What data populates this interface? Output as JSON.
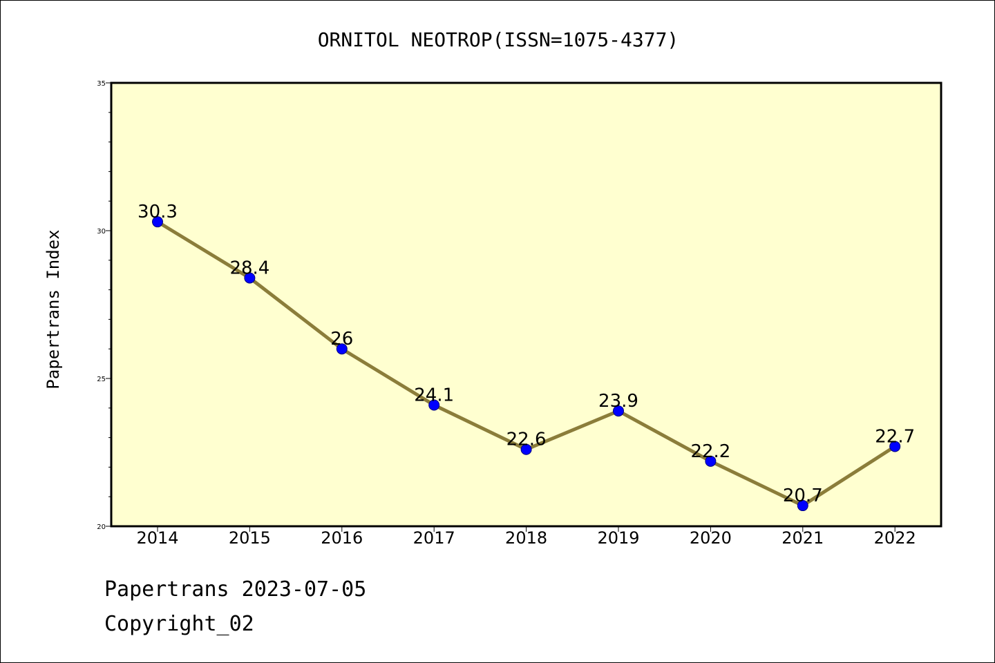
{
  "colors": {
    "plot_background": "#ffffd0",
    "line": "#8b7d3a",
    "marker": "#0000ff",
    "marker_edge": "#000080",
    "axis": "#000000"
  },
  "chart_data": {
    "type": "line",
    "title": "ORNITOL NEOTROP(ISSN=1075-4377)",
    "xlabel": "",
    "ylabel": "Papertrans Index",
    "categories": [
      "2014",
      "2015",
      "2016",
      "2017",
      "2018",
      "2019",
      "2020",
      "2021",
      "2022"
    ],
    "series": [
      {
        "values": [
          30.3,
          28.4,
          26,
          24.1,
          22.6,
          23.9,
          22.2,
          20.7,
          22.7
        ],
        "data_labels": [
          "30.3",
          "28.4",
          "26",
          "24.1",
          "22.6",
          "23.9",
          "22.2",
          "20.7",
          "22.7"
        ]
      }
    ],
    "ylim": [
      20,
      35
    ],
    "yticks": [
      "20",
      "25",
      "30",
      "35"
    ],
    "grid": false,
    "legend": "none"
  },
  "footer": {
    "date_line": "Papertrans 2023-07-05",
    "copyright_line": "Copyright_02"
  }
}
